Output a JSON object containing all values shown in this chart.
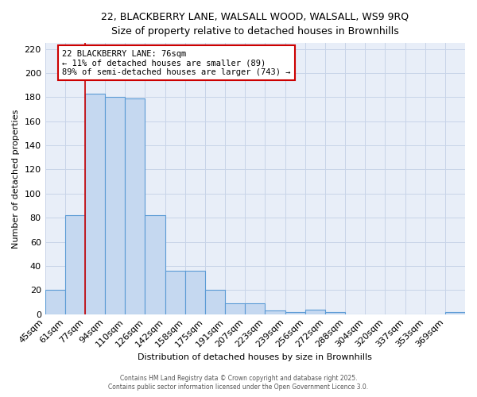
{
  "title_line1": "22, BLACKBERRY LANE, WALSALL WOOD, WALSALL, WS9 9RQ",
  "title_line2": "Size of property relative to detached houses in Brownhills",
  "xlabel": "Distribution of detached houses by size in Brownhills",
  "ylabel": "Number of detached properties",
  "bar_labels": [
    "45sqm",
    "61sqm",
    "77sqm",
    "94sqm",
    "110sqm",
    "126sqm",
    "142sqm",
    "158sqm",
    "175sqm",
    "191sqm",
    "207sqm",
    "223sqm",
    "239sqm",
    "256sqm",
    "272sqm",
    "288sqm",
    "304sqm",
    "320sqm",
    "337sqm",
    "353sqm",
    "369sqm"
  ],
  "bar_values": [
    20,
    82,
    183,
    180,
    179,
    82,
    36,
    36,
    20,
    9,
    9,
    3,
    2,
    4,
    2,
    0,
    0,
    0,
    0,
    0,
    2
  ],
  "bar_color": "#c5d8f0",
  "bar_edge_color": "#5b9bd5",
  "vline_x_index": 2,
  "annotation_line1": "22 BLACKBERRY LANE: 76sqm",
  "annotation_line2": "← 11% of detached houses are smaller (89)",
  "annotation_line3": "89% of semi-detached houses are larger (743) →",
  "annotation_box_facecolor": "#ffffff",
  "annotation_box_edgecolor": "#cc0000",
  "vline_color": "#cc0000",
  "ylim": [
    0,
    225
  ],
  "yticks": [
    0,
    20,
    40,
    60,
    80,
    100,
    120,
    140,
    160,
    180,
    200,
    220
  ],
  "grid_color": "#c8d4e8",
  "bg_color": "#e8eef8",
  "fig_bg_color": "#ffffff",
  "footer_line1": "Contains HM Land Registry data © Crown copyright and database right 2025.",
  "footer_line2": "Contains public sector information licensed under the Open Government Licence 3.0."
}
